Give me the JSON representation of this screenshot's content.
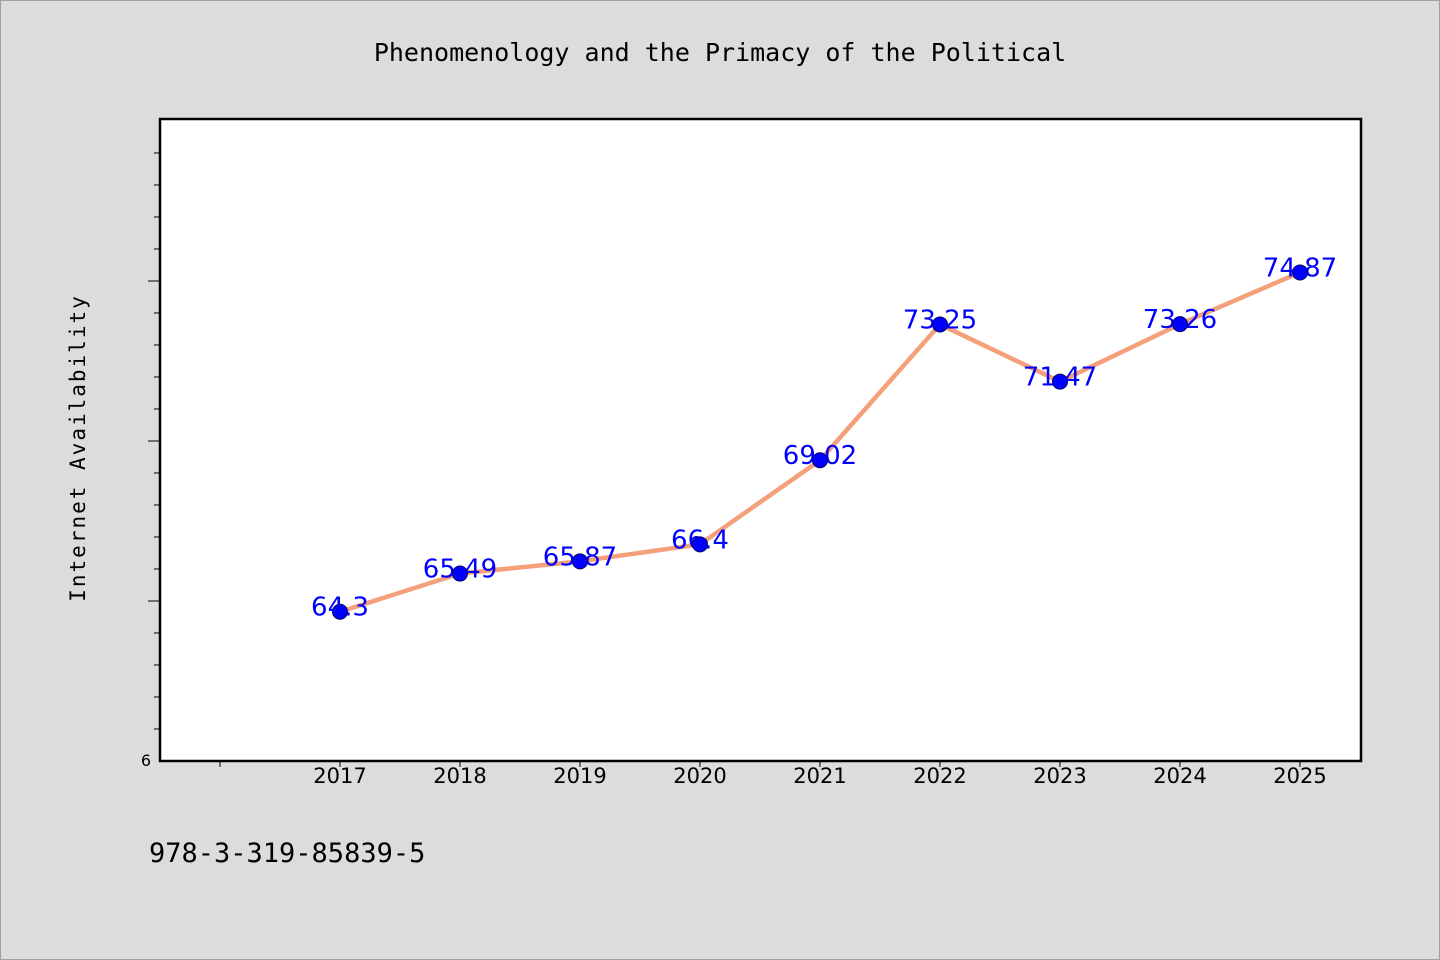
{
  "chart_data": {
    "type": "line",
    "title": "Phenomenology and the Primacy of the Political",
    "xlabel": "",
    "ylabel": "Internet Availability",
    "x": [
      "2017",
      "2018",
      "2019",
      "2020",
      "2021",
      "2022",
      "2023",
      "2024",
      "2025"
    ],
    "series": [
      {
        "values": [
          64.3,
          65.49,
          65.87,
          66.4,
          69.02,
          73.25,
          71.47,
          73.26,
          74.87
        ],
        "labels": [
          "64.3",
          "65.49",
          "65.87",
          "66.4",
          "69.02",
          "73.25",
          "71.47",
          "73.26",
          "74.87"
        ],
        "line_color": "#f4a07a",
        "marker_color": "#0000ff"
      }
    ],
    "y_tick_labels": [
      "6"
    ],
    "ylim": [
      59.65,
      79.65
    ],
    "grid": false,
    "legend": "none"
  },
  "footer": {
    "isbn": "978-3-319-85839-5"
  }
}
